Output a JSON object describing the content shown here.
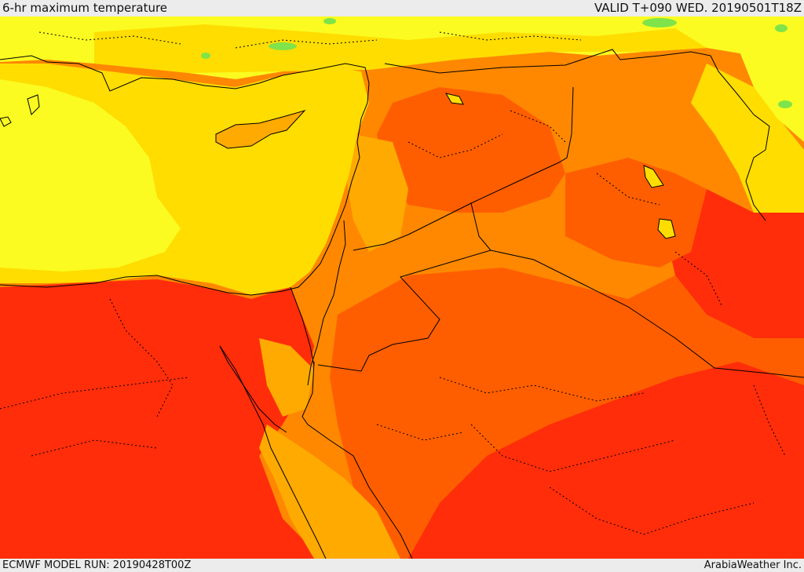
{
  "header": {
    "title": "6-hr maximum temperature",
    "valid": "VALID T+090 WED. 20190501T18Z"
  },
  "footer": {
    "model_run": "ECMWF MODEL RUN: 20190428T00Z",
    "credit": "ArabiaWeather Inc."
  },
  "map": {
    "variable": "6-hr maximum temperature",
    "region": "Eastern Mediterranean / Middle East",
    "palette": {
      "green": "#7fe34a",
      "light_yellow": "#fbfb21",
      "yellow": "#ffdd00",
      "light_orange": "#ffaa00",
      "orange": "#ff8800",
      "dark_orange": "#ff5e00",
      "red": "#ff2d0a",
      "sea_outline": "#000000"
    }
  }
}
